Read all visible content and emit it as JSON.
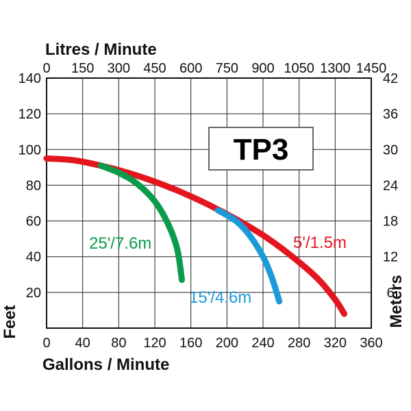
{
  "chart_data": {
    "type": "line",
    "title": "TP3",
    "xlabel": "Gallons / Minute",
    "ylabel": "Feet",
    "x2label": "Litres / Minute",
    "y2label": "Meters",
    "xlim": [
      0,
      360
    ],
    "ylim": [
      0,
      140
    ],
    "xticks": [
      "0",
      "40",
      "80",
      "120",
      "160",
      "200",
      "240",
      "280",
      "320",
      "360"
    ],
    "yticks": [
      "20",
      "40",
      "60",
      "80",
      "100",
      "120",
      "140"
    ],
    "x2ticks": [
      "0",
      "150",
      "300",
      "450",
      "600",
      "750",
      "900",
      "1050",
      "1300",
      "1450"
    ],
    "y2ticks": [
      "6",
      "12",
      "18",
      "24",
      "30",
      "36",
      "42"
    ],
    "grid": true,
    "series": [
      {
        "name": "5'/1.5m",
        "color": "#e3161f",
        "x": [
          0,
          30,
          60,
          90,
          120,
          150,
          180,
          210,
          240,
          270,
          300,
          320,
          330
        ],
        "y": [
          95,
          94,
          91,
          87,
          82,
          76,
          69,
          61,
          52,
          41,
          28,
          16,
          8
        ]
      },
      {
        "name": "25'/7.6m",
        "color": "#0a9b4b",
        "x": [
          60,
          80,
          100,
          120,
          135,
          145,
          150
        ],
        "y": [
          91,
          87,
          81,
          71,
          58,
          44,
          27
        ]
      },
      {
        "name": "15'/4.6m",
        "color": "#1a9ad8",
        "x": [
          190,
          210,
          225,
          240,
          250,
          258
        ],
        "y": [
          66,
          60,
          52,
          40,
          28,
          15
        ]
      }
    ]
  }
}
